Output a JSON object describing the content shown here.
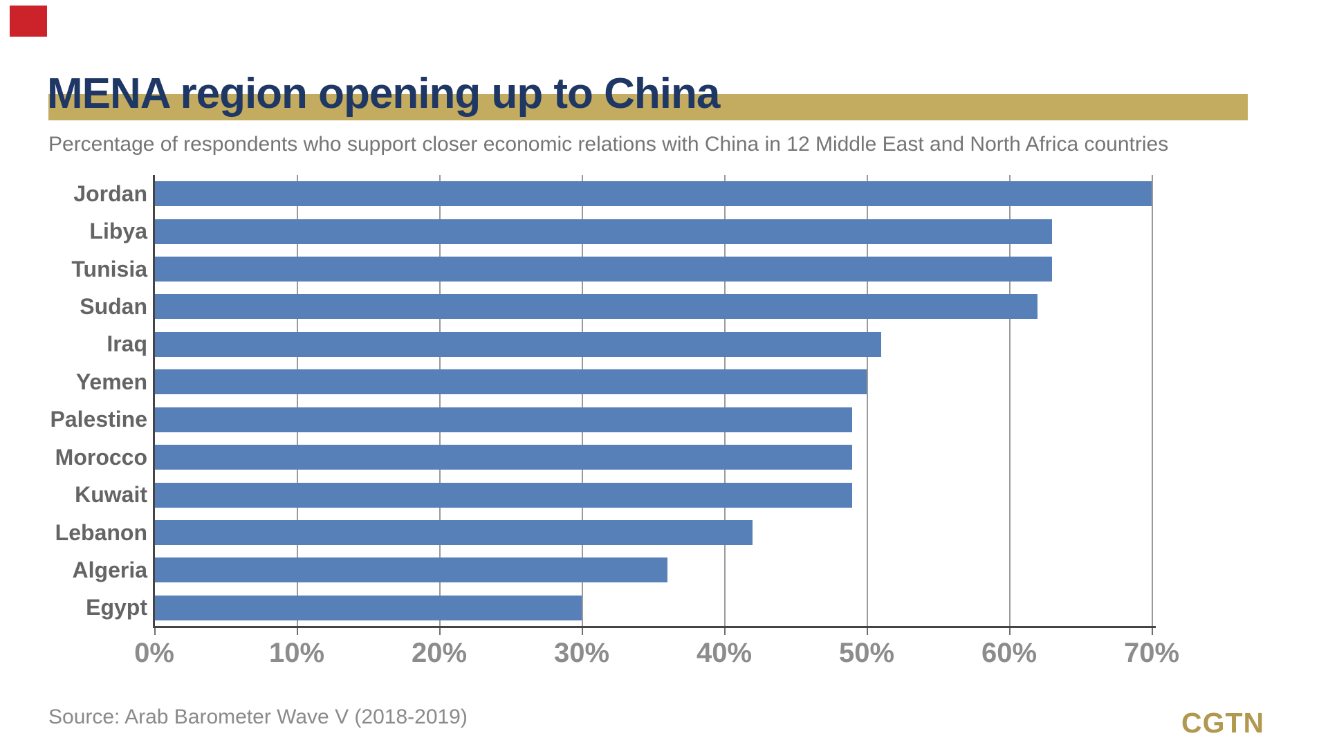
{
  "overlay": {
    "click_marker_color": "#CC2229"
  },
  "header": {
    "title": "MENA region opening up to China",
    "subtitle": "Percentage of respondents who support closer economic relations with China in 12 Middle East and North Africa countries",
    "title_color": "#1E3764",
    "accent_gold": "#C3AC5F"
  },
  "chart_data": {
    "type": "bar",
    "orientation": "horizontal",
    "title": "MENA region opening up to China",
    "categories": [
      "Jordan",
      "Libya",
      "Tunisia",
      "Sudan",
      "Iraq",
      "Yemen",
      "Palestine",
      "Morocco",
      "Kuwait",
      "Lebanon",
      "Algeria",
      "Egypt"
    ],
    "values": [
      70,
      63,
      63,
      62,
      51,
      50,
      49,
      49,
      49,
      42,
      36,
      30
    ],
    "value_unit": "%",
    "xlim": [
      0,
      70
    ],
    "x_tick_labels": [
      "0%",
      "10%",
      "20%",
      "30%",
      "40%",
      "50%",
      "60%",
      "70%"
    ],
    "xlabel": "",
    "ylabel": "",
    "grid": true,
    "legend": false,
    "bar_color": "#5880B8",
    "gridline_color": "#9A9A9A",
    "axis_color": "#454545",
    "tick_label_color": "#8C8C8C",
    "category_label_color": "#646464"
  },
  "footer": {
    "source": "Source: Arab Barometer Wave V (2018-2019)",
    "logo": "CGTN",
    "logo_color": "#B2984E"
  }
}
